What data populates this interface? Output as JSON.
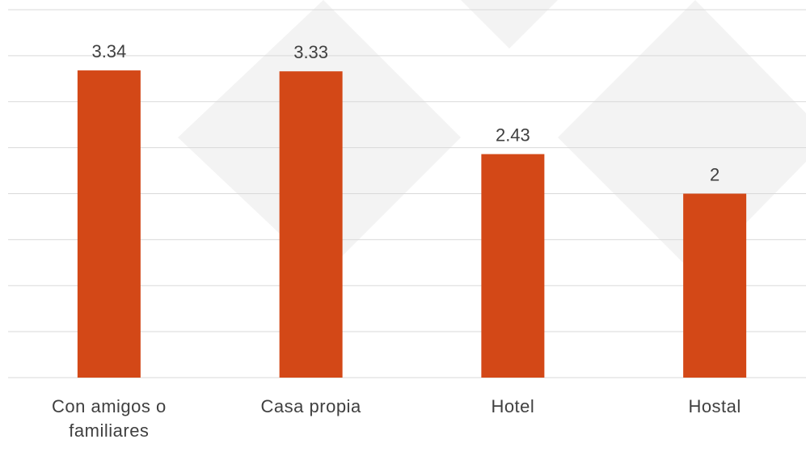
{
  "chart_data": {
    "type": "bar",
    "categories": [
      "Con amigos o familiares",
      "Casa propia",
      "Hotel",
      "Hostal"
    ],
    "values": [
      3.34,
      3.33,
      2.43,
      2
    ],
    "color": "#d34817",
    "ylim": [
      0,
      4
    ],
    "yticks": [
      0,
      0.5,
      1,
      1.5,
      2,
      2.5,
      3,
      3.5,
      4
    ],
    "grid": true
  }
}
